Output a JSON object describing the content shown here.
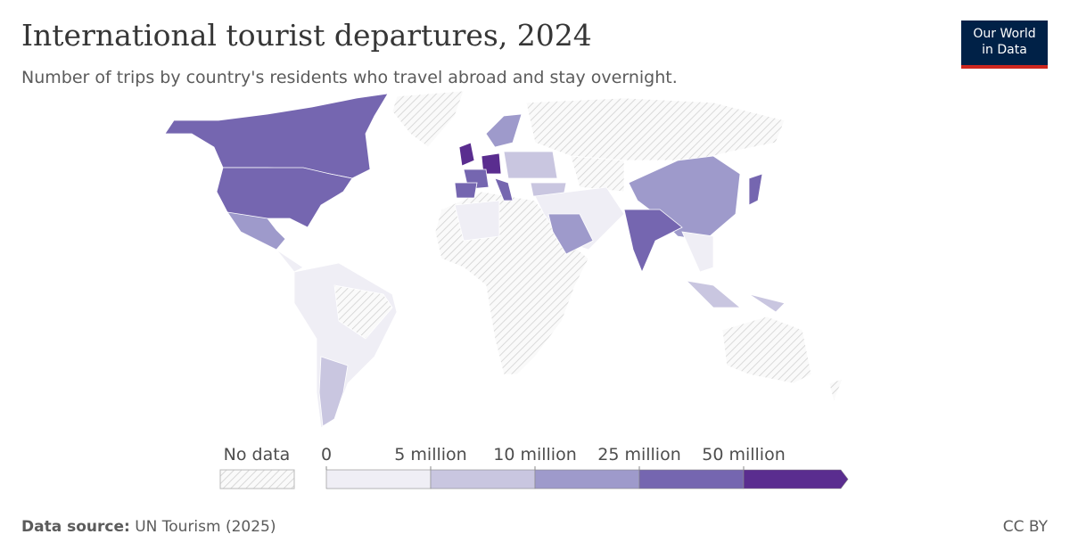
{
  "header": {
    "title": "International tourist departures, 2024",
    "subtitle": "Number of trips by country's residents who travel abroad and stay overnight.",
    "logo": [
      "Our World",
      "in Data"
    ]
  },
  "legend": {
    "no_data_label": "No data",
    "bins": [
      0,
      {
        "value": 5000000,
        "label": "5 million"
      },
      {
        "value": 10000000,
        "label": "10 million"
      },
      {
        "value": 25000000,
        "label": "25 million"
      },
      {
        "value": 50000000,
        "label": "50 million"
      }
    ],
    "colors": [
      "#efeef5",
      "#c9c6e0",
      "#9e9acb",
      "#7566b0",
      "#5a2d8f"
    ]
  },
  "footer": {
    "source_label": "Data source:",
    "source": "UN Tourism (2025)",
    "license": "CC BY"
  }
}
